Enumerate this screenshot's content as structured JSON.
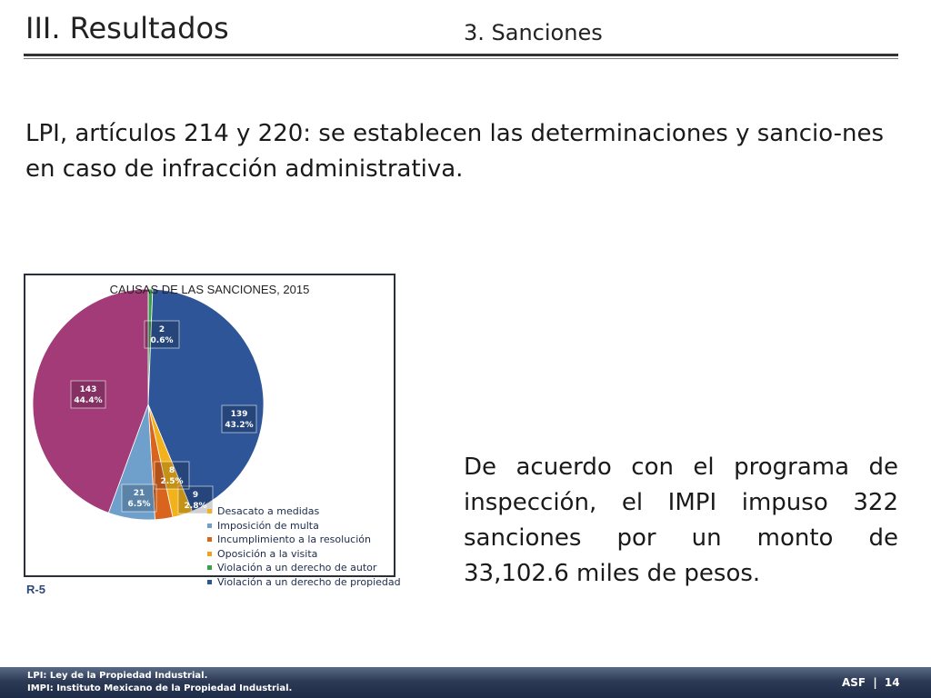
{
  "header": {
    "title": "III. Resultados",
    "section": "3. Sanciones"
  },
  "intro_text": "LPI, artículos 214 y 220: se establecen las determinaciones y sancio-nes en caso de infracción administrativa.",
  "chart_data": {
    "type": "pie",
    "title": "CAUSAS DE LAS SANCIONES, 2015",
    "slices": [
      {
        "label": "Desacato a medidas",
        "value": 9,
        "percent": "2.8%",
        "color": "#f2b21c"
      },
      {
        "label": "Imposición de multa",
        "value": 21,
        "percent": "6.5%",
        "color": "#6fa0cc"
      },
      {
        "label": "Incumplimiento a la resolución",
        "value": 8,
        "percent": "2.5%",
        "color": "#d9641e"
      },
      {
        "label": "Oposición a la visita",
        "value": 0,
        "percent": "",
        "color": "#f0a020"
      },
      {
        "label": "Violación a un derecho de autor",
        "value": 2,
        "percent": "0.6%",
        "color": "#3aa04a"
      },
      {
        "label": "Violación a un derecho de propiedad",
        "value": 139,
        "percent": "43.2%",
        "color": "#2e5597"
      }
    ],
    "unlabeled_slice": {
      "value": 143,
      "percent": "44.4%",
      "color": "#a23b78"
    },
    "legend_placement": "bottom-right"
  },
  "reference": "R-5",
  "body_text": "De acuerdo con el programa de inspección, el IMPI impuso 322 sanciones por un monto de 33,102.6 miles de pesos.",
  "footer": {
    "note1": "LPI: Ley de la Propiedad Industrial.",
    "note2": "IMPI: Instituto Mexicano de la Propiedad Industrial.",
    "org": "ASF",
    "separator": "|",
    "page": "14"
  }
}
